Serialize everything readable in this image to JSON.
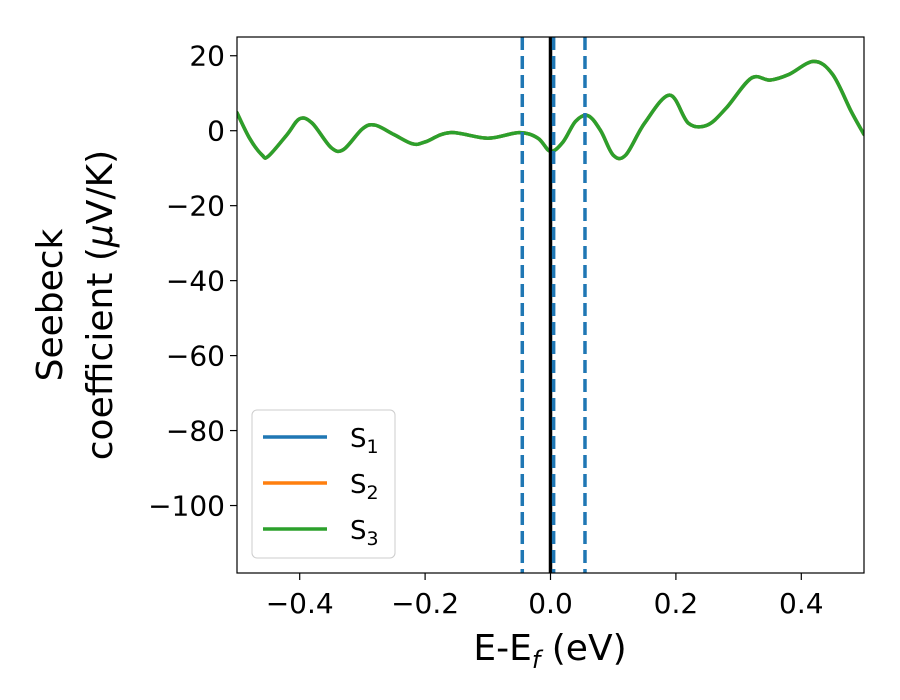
{
  "chart_data": {
    "type": "line",
    "title": "",
    "xlabel_main": "E-E",
    "xlabel_sub": "f",
    "xlabel_unit": " (eV)",
    "ylabel_line1": "Seebeck",
    "ylabel_line2_prefix": "coefficient  (",
    "ylabel_mu": "μ",
    "ylabel_line2_suffix": "V/K)",
    "xlim": [
      -0.5,
      0.5
    ],
    "ylim": [
      -118,
      25
    ],
    "x_ticks": [
      -0.4,
      -0.2,
      0.0,
      0.2,
      0.4
    ],
    "x_tick_labels": [
      "−0.4",
      "−0.2",
      "0.0",
      "0.2",
      "0.4"
    ],
    "y_ticks": [
      20,
      0,
      -20,
      -40,
      -60,
      -80,
      -100
    ],
    "y_tick_labels": [
      "20",
      "0",
      "−20",
      "−40",
      "−60",
      "−80",
      "−100"
    ],
    "grid": false,
    "legend_position": "lower-left",
    "series": [
      {
        "name": "S",
        "sub": "1",
        "color": "#1f77b4",
        "x": [
          -0.5,
          -0.48,
          -0.46,
          -0.45,
          -0.42,
          -0.4,
          -0.38,
          -0.35,
          -0.33,
          -0.3,
          -0.28,
          -0.25,
          -0.22,
          -0.2,
          -0.16,
          -0.1,
          -0.05,
          -0.02,
          0.0,
          0.02,
          0.04,
          0.06,
          0.08,
          0.1,
          0.12,
          0.15,
          0.19,
          0.22,
          0.25,
          0.28,
          0.32,
          0.35,
          0.38,
          0.42,
          0.45,
          0.48,
          0.5
        ],
        "y": [
          4.8,
          -2,
          -6.5,
          -6.8,
          -1,
          3.2,
          2,
          -4.5,
          -5,
          0.5,
          1.5,
          -1,
          -3.5,
          -3,
          -0.5,
          -2,
          -0.5,
          -2,
          -5.5,
          -3,
          2.5,
          4,
          0,
          -6.5,
          -6.5,
          2,
          9.5,
          2,
          1.5,
          6,
          14,
          13.5,
          15,
          18.5,
          15,
          5,
          -1
        ]
      },
      {
        "name": "S",
        "sub": "2",
        "color": "#ff7f0e",
        "x": [
          -0.5,
          -0.48,
          -0.46,
          -0.45,
          -0.42,
          -0.4,
          -0.38,
          -0.35,
          -0.33,
          -0.3,
          -0.28,
          -0.25,
          -0.22,
          -0.2,
          -0.16,
          -0.1,
          -0.05,
          -0.02,
          0.0,
          0.02,
          0.04,
          0.06,
          0.08,
          0.1,
          0.12,
          0.15,
          0.19,
          0.22,
          0.25,
          0.28,
          0.32,
          0.35,
          0.38,
          0.42,
          0.45,
          0.48,
          0.5
        ],
        "y": [
          4.8,
          -2,
          -6.5,
          -6.8,
          -1,
          3.2,
          2,
          -4.5,
          -5,
          0.5,
          1.5,
          -1,
          -3.5,
          -3,
          -0.5,
          -2,
          -0.5,
          -2,
          -5.5,
          -3,
          2.5,
          4,
          0,
          -6.5,
          -6.5,
          2,
          9.5,
          2,
          1.5,
          6,
          14,
          13.5,
          15,
          18.5,
          15,
          5,
          -1
        ]
      },
      {
        "name": "S",
        "sub": "3",
        "color": "#2ca02c",
        "x": [
          -0.5,
          -0.48,
          -0.46,
          -0.45,
          -0.42,
          -0.4,
          -0.38,
          -0.35,
          -0.33,
          -0.3,
          -0.28,
          -0.25,
          -0.22,
          -0.2,
          -0.16,
          -0.1,
          -0.05,
          -0.02,
          0.0,
          0.02,
          0.04,
          0.06,
          0.08,
          0.1,
          0.12,
          0.15,
          0.19,
          0.22,
          0.25,
          0.28,
          0.32,
          0.35,
          0.38,
          0.42,
          0.45,
          0.48,
          0.5
        ],
        "y": [
          4.8,
          -2,
          -6.5,
          -6.8,
          -1,
          3.2,
          2,
          -4.5,
          -5,
          0.5,
          1.5,
          -1,
          -3.5,
          -3,
          -0.5,
          -2,
          -0.5,
          -2,
          -5.5,
          -3,
          2.5,
          4,
          0,
          -6.5,
          -6.5,
          2,
          9.5,
          2,
          1.5,
          6,
          14,
          13.5,
          15,
          18.5,
          15,
          5,
          -1
        ]
      }
    ],
    "vertical_lines": [
      {
        "x": -0.045,
        "style": "dashed",
        "color": "#1f77b4"
      },
      {
        "x": 0.0,
        "style": "solid",
        "color": "#000000"
      },
      {
        "x": 0.005,
        "style": "dashed",
        "color": "#1f77b4"
      },
      {
        "x": 0.055,
        "style": "dashed",
        "color": "#1f77b4"
      }
    ]
  }
}
